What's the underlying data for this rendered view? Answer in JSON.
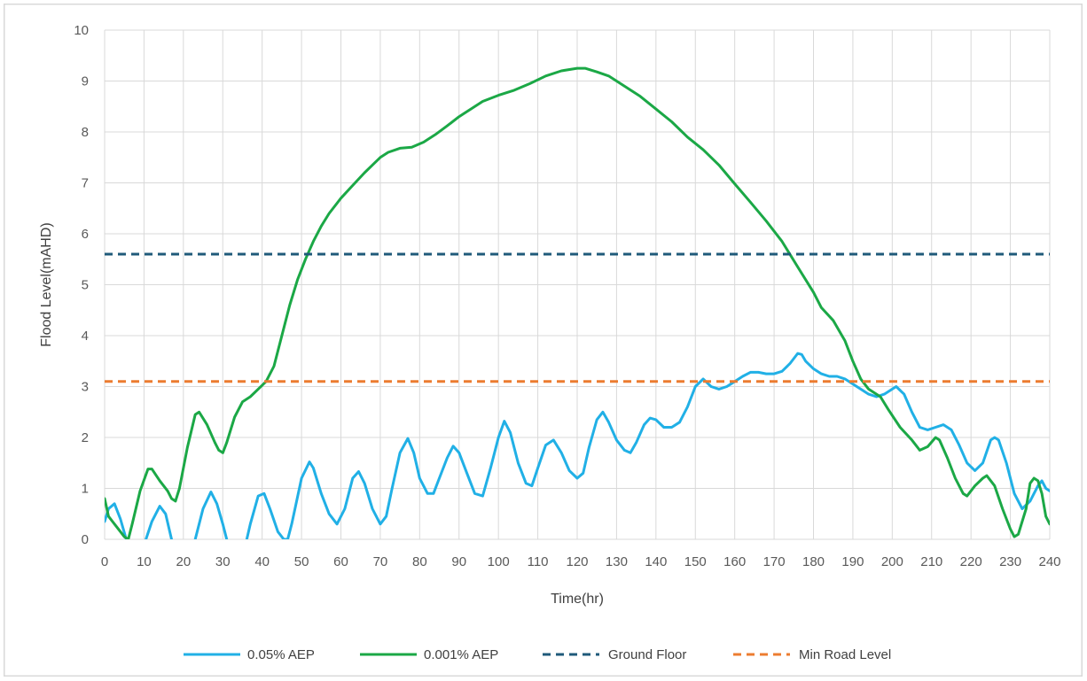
{
  "chart_data": {
    "type": "line",
    "title": "",
    "xlabel": "Time(hr)",
    "ylabel": "Flood Level(mAHD)",
    "xlim": [
      0,
      240
    ],
    "ylim": [
      0,
      10
    ],
    "x_ticks": [
      "0",
      "10",
      "20",
      "30",
      "40",
      "50",
      "60",
      "70",
      "80",
      "90",
      "100",
      "110",
      "120",
      "130",
      "140",
      "150",
      "160",
      "170",
      "180",
      "190",
      "200",
      "210",
      "220",
      "230",
      "240"
    ],
    "y_ticks": [
      "0",
      "1",
      "2",
      "3",
      "4",
      "5",
      "6",
      "7",
      "8",
      "9",
      "10"
    ],
    "grid": true,
    "legend_position": "bottom",
    "series": [
      {
        "name": "0.05% AEP",
        "color": "#21b0e6",
        "style": "solid",
        "points": [
          [
            0,
            0.35
          ],
          [
            1,
            0.6
          ],
          [
            2.5,
            0.7
          ],
          [
            4,
            0.4
          ],
          [
            5.5,
            0.0
          ],
          [
            7,
            -0.4
          ],
          [
            9,
            -0.3
          ],
          [
            10.5,
            0.0
          ],
          [
            12,
            0.35
          ],
          [
            14,
            0.65
          ],
          [
            15.5,
            0.5
          ],
          [
            17,
            0.0
          ],
          [
            19,
            -0.5
          ],
          [
            21.5,
            -0.3
          ],
          [
            23,
            0.0
          ],
          [
            25,
            0.6
          ],
          [
            27,
            0.93
          ],
          [
            28.5,
            0.7
          ],
          [
            30,
            0.3
          ],
          [
            31,
            0.0
          ],
          [
            33.5,
            -0.5
          ],
          [
            35.5,
            -0.2
          ],
          [
            37,
            0.3
          ],
          [
            39,
            0.85
          ],
          [
            40.5,
            0.9
          ],
          [
            42,
            0.6
          ],
          [
            44,
            0.15
          ],
          [
            45.5,
            0.0
          ],
          [
            46.5,
            0.0
          ],
          [
            47.5,
            0.3
          ],
          [
            50,
            1.2
          ],
          [
            52,
            1.52
          ],
          [
            53,
            1.4
          ],
          [
            55,
            0.9
          ],
          [
            57,
            0.5
          ],
          [
            59,
            0.3
          ],
          [
            61,
            0.6
          ],
          [
            63,
            1.2
          ],
          [
            64.5,
            1.33
          ],
          [
            66,
            1.1
          ],
          [
            68,
            0.6
          ],
          [
            70,
            0.3
          ],
          [
            71.5,
            0.45
          ],
          [
            73,
            1.0
          ],
          [
            75,
            1.7
          ],
          [
            77,
            1.98
          ],
          [
            78.5,
            1.7
          ],
          [
            80,
            1.2
          ],
          [
            82,
            0.9
          ],
          [
            83.5,
            0.9
          ],
          [
            85,
            1.2
          ],
          [
            87,
            1.6
          ],
          [
            88.5,
            1.83
          ],
          [
            90,
            1.7
          ],
          [
            92,
            1.3
          ],
          [
            94,
            0.9
          ],
          [
            96,
            0.85
          ],
          [
            98,
            1.4
          ],
          [
            100,
            2.0
          ],
          [
            101.5,
            2.32
          ],
          [
            103,
            2.1
          ],
          [
            105,
            1.5
          ],
          [
            107,
            1.1
          ],
          [
            108.5,
            1.05
          ],
          [
            110,
            1.4
          ],
          [
            112,
            1.85
          ],
          [
            114,
            1.95
          ],
          [
            116,
            1.7
          ],
          [
            118,
            1.35
          ],
          [
            120,
            1.2
          ],
          [
            121.5,
            1.3
          ],
          [
            123,
            1.8
          ],
          [
            125,
            2.35
          ],
          [
            126.5,
            2.5
          ],
          [
            128,
            2.3
          ],
          [
            130,
            1.95
          ],
          [
            132,
            1.75
          ],
          [
            133.5,
            1.7
          ],
          [
            135,
            1.9
          ],
          [
            137,
            2.25
          ],
          [
            138.5,
            2.38
          ],
          [
            140,
            2.35
          ],
          [
            142,
            2.2
          ],
          [
            144,
            2.2
          ],
          [
            146,
            2.3
          ],
          [
            148,
            2.6
          ],
          [
            150,
            3.0
          ],
          [
            152,
            3.15
          ],
          [
            154,
            3.0
          ],
          [
            156,
            2.95
          ],
          [
            158,
            3.0
          ],
          [
            160,
            3.1
          ],
          [
            162,
            3.2
          ],
          [
            164,
            3.28
          ],
          [
            166,
            3.28
          ],
          [
            168,
            3.25
          ],
          [
            170,
            3.25
          ],
          [
            172,
            3.3
          ],
          [
            174,
            3.45
          ],
          [
            176,
            3.65
          ],
          [
            177,
            3.63
          ],
          [
            178,
            3.5
          ],
          [
            180,
            3.35
          ],
          [
            182,
            3.25
          ],
          [
            184,
            3.2
          ],
          [
            186,
            3.2
          ],
          [
            188,
            3.15
          ],
          [
            190,
            3.05
          ],
          [
            192,
            2.95
          ],
          [
            194,
            2.85
          ],
          [
            196,
            2.8
          ],
          [
            198,
            2.85
          ],
          [
            200,
            2.95
          ],
          [
            201,
            3.0
          ],
          [
            203,
            2.85
          ],
          [
            205,
            2.5
          ],
          [
            207,
            2.2
          ],
          [
            209,
            2.15
          ],
          [
            211,
            2.2
          ],
          [
            213,
            2.25
          ],
          [
            215,
            2.15
          ],
          [
            217,
            1.85
          ],
          [
            219,
            1.5
          ],
          [
            221,
            1.35
          ],
          [
            223,
            1.5
          ],
          [
            225,
            1.95
          ],
          [
            226,
            2.0
          ],
          [
            227,
            1.95
          ],
          [
            229,
            1.5
          ],
          [
            231,
            0.9
          ],
          [
            233,
            0.6
          ],
          [
            235,
            0.75
          ],
          [
            237,
            1.05
          ],
          [
            238,
            1.15
          ],
          [
            239,
            1.0
          ],
          [
            240,
            0.95
          ]
        ]
      },
      {
        "name": "0.001% AEP",
        "color": "#1ba846",
        "style": "solid",
        "points": [
          [
            0,
            0.8
          ],
          [
            1,
            0.45
          ],
          [
            3,
            0.25
          ],
          [
            5,
            0.05
          ],
          [
            6,
            0.0
          ],
          [
            7,
            0.3
          ],
          [
            9,
            0.95
          ],
          [
            11,
            1.38
          ],
          [
            12,
            1.38
          ],
          [
            14,
            1.15
          ],
          [
            16,
            0.95
          ],
          [
            17,
            0.8
          ],
          [
            18,
            0.75
          ],
          [
            19,
            1.0
          ],
          [
            21,
            1.8
          ],
          [
            23,
            2.45
          ],
          [
            24,
            2.5
          ],
          [
            26,
            2.25
          ],
          [
            28,
            1.9
          ],
          [
            29,
            1.75
          ],
          [
            30,
            1.7
          ],
          [
            31,
            1.9
          ],
          [
            33,
            2.4
          ],
          [
            35,
            2.7
          ],
          [
            37,
            2.8
          ],
          [
            39,
            2.95
          ],
          [
            41,
            3.1
          ],
          [
            43,
            3.4
          ],
          [
            45,
            4.0
          ],
          [
            47,
            4.6
          ],
          [
            49,
            5.1
          ],
          [
            51,
            5.5
          ],
          [
            53,
            5.85
          ],
          [
            55,
            6.15
          ],
          [
            57,
            6.4
          ],
          [
            60,
            6.7
          ],
          [
            63,
            6.95
          ],
          [
            66,
            7.2
          ],
          [
            68,
            7.35
          ],
          [
            70,
            7.5
          ],
          [
            72,
            7.6
          ],
          [
            75,
            7.68
          ],
          [
            78,
            7.7
          ],
          [
            81,
            7.8
          ],
          [
            84,
            7.95
          ],
          [
            87,
            8.12
          ],
          [
            90,
            8.3
          ],
          [
            93,
            8.45
          ],
          [
            96,
            8.6
          ],
          [
            100,
            8.72
          ],
          [
            104,
            8.82
          ],
          [
            108,
            8.95
          ],
          [
            112,
            9.1
          ],
          [
            116,
            9.2
          ],
          [
            120,
            9.25
          ],
          [
            122,
            9.25
          ],
          [
            125,
            9.18
          ],
          [
            128,
            9.1
          ],
          [
            132,
            8.9
          ],
          [
            136,
            8.7
          ],
          [
            140,
            8.45
          ],
          [
            144,
            8.2
          ],
          [
            148,
            7.9
          ],
          [
            152,
            7.65
          ],
          [
            156,
            7.35
          ],
          [
            160,
            6.98
          ],
          [
            164,
            6.62
          ],
          [
            168,
            6.25
          ],
          [
            172,
            5.85
          ],
          [
            176,
            5.35
          ],
          [
            180,
            4.85
          ],
          [
            182,
            4.55
          ],
          [
            185,
            4.3
          ],
          [
            188,
            3.9
          ],
          [
            190,
            3.5
          ],
          [
            192,
            3.15
          ],
          [
            194,
            2.95
          ],
          [
            197,
            2.8
          ],
          [
            199,
            2.55
          ],
          [
            202,
            2.2
          ],
          [
            205,
            1.95
          ],
          [
            207,
            1.75
          ],
          [
            209,
            1.82
          ],
          [
            211,
            2.0
          ],
          [
            212,
            1.95
          ],
          [
            214,
            1.6
          ],
          [
            216,
            1.2
          ],
          [
            218,
            0.9
          ],
          [
            219,
            0.85
          ],
          [
            221,
            1.05
          ],
          [
            223,
            1.2
          ],
          [
            224,
            1.25
          ],
          [
            226,
            1.05
          ],
          [
            228,
            0.6
          ],
          [
            230,
            0.2
          ],
          [
            231,
            0.05
          ],
          [
            232,
            0.1
          ],
          [
            234,
            0.6
          ],
          [
            235,
            1.1
          ],
          [
            236,
            1.2
          ],
          [
            237,
            1.15
          ],
          [
            238,
            0.9
          ],
          [
            239,
            0.45
          ],
          [
            240,
            0.3
          ]
        ]
      },
      {
        "name": "Ground Floor",
        "color": "#1f5a7a",
        "style": "dashed",
        "points": [
          [
            0,
            5.6
          ],
          [
            240,
            5.6
          ]
        ]
      },
      {
        "name": "Min Road Level",
        "color": "#ec7c30",
        "style": "dashed",
        "points": [
          [
            0,
            3.1
          ],
          [
            240,
            3.1
          ]
        ]
      }
    ]
  }
}
